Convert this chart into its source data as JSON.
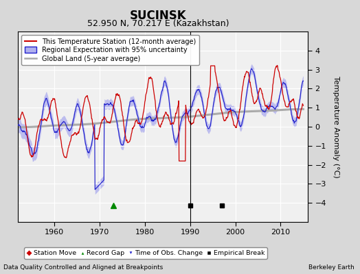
{
  "title": "SUCINSK",
  "subtitle": "52.950 N, 70.217 E (Kazakhstan)",
  "ylabel": "Temperature Anomaly (°C)",
  "ylim": [
    -5,
    5
  ],
  "xlim": [
    1952,
    2016
  ],
  "xticks": [
    1960,
    1970,
    1980,
    1990,
    2000,
    2010
  ],
  "yticks": [
    -4,
    -3,
    -2,
    -1,
    0,
    1,
    2,
    3,
    4
  ],
  "footer_left": "Data Quality Controlled and Aligned at Breakpoints",
  "footer_right": "Berkeley Earth",
  "fig_bg_color": "#d8d8d8",
  "plot_bg_color": "#f0f0f0",
  "grid_color": "white",
  "red_color": "#cc0000",
  "blue_color": "#2020cc",
  "blue_fill_color": "#b0b0ee",
  "gray_color": "#aaaaaa",
  "vline_x": 1990,
  "marker_gap_x": 1973,
  "marker_gap_y": -4.15,
  "marker_break1_x": 1990,
  "marker_break1_y": -4.15,
  "marker_break2_x": 1997,
  "marker_break2_y": -4.15,
  "legend_entries": [
    "This Temperature Station (12-month average)",
    "Regional Expectation with 95% uncertainty",
    "Global Land (5-year average)"
  ],
  "legend2_entries": [
    "Station Move",
    "Record Gap",
    "Time of Obs. Change",
    "Empirical Break"
  ]
}
